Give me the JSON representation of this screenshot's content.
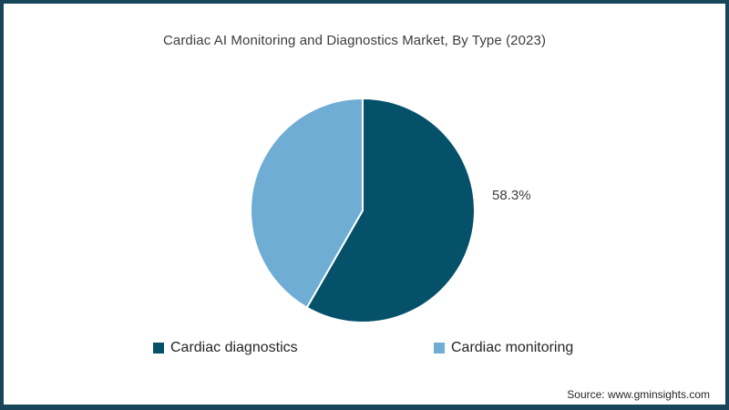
{
  "frame": {
    "border_color": "#17455a",
    "background": "#ffffff"
  },
  "header": {
    "title": "Cardiac AI Monitoring and Diagnostics Market, By Type (2023)"
  },
  "chart_data": {
    "type": "pie",
    "title": "Cardiac AI Monitoring and Diagnostics Market, By Type (2023)",
    "unit": "%",
    "start_angle_deg": 0,
    "direction": "clockwise",
    "legend_position": "bottom",
    "slice_stroke_color": "#ffffff",
    "slices": [
      {
        "label": "Cardiac diagnostics",
        "value": 58.3,
        "color": "#045169",
        "data_label": "58.3%"
      },
      {
        "label": "Cardiac monitoring",
        "value": 41.7,
        "color": "#6fadd4",
        "data_label": ""
      }
    ]
  },
  "footer": {
    "source": "Source: www.gminsights.com"
  }
}
